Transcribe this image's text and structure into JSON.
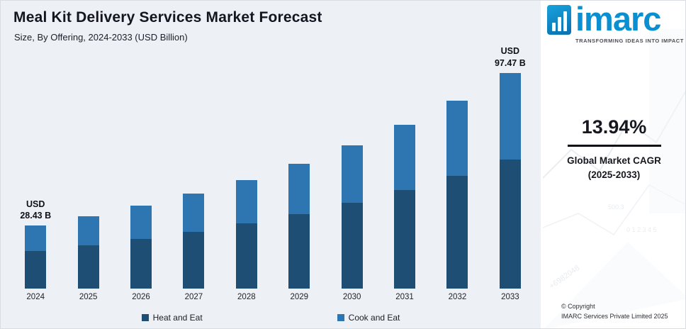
{
  "title": "Meal Kit Delivery Services Market Forecast",
  "subtitle": "Size, By Offering, 2024-2033 (USD Billion)",
  "chart_data": {
    "type": "bar",
    "stacked": true,
    "title": "Meal Kit Delivery Services Market Forecast",
    "subtitle": "Size, By Offering, 2024-2033 (USD Billion)",
    "unit": "USD Billion",
    "categories": [
      "2024",
      "2025",
      "2026",
      "2027",
      "2028",
      "2029",
      "2030",
      "2031",
      "2032",
      "2033"
    ],
    "series": [
      {
        "name": "Heat and Eat",
        "color": "#1e4e74",
        "values": [
          17.06,
          19.56,
          22.43,
          25.72,
          29.49,
          33.82,
          38.77,
          44.46,
          50.98,
          58.48
        ]
      },
      {
        "name": "Cook and Eat",
        "color": "#2e76b2",
        "values": [
          11.37,
          13.04,
          14.95,
          17.14,
          19.66,
          22.54,
          25.85,
          29.64,
          33.99,
          38.99
        ]
      }
    ],
    "totals": [
      28.43,
      32.6,
      37.38,
      42.86,
      49.15,
      56.36,
      64.62,
      74.1,
      84.97,
      97.47
    ],
    "annotations": [
      {
        "category": "2024",
        "lines": [
          "USD",
          "28.43 B"
        ]
      },
      {
        "category": "2033",
        "lines": [
          "USD",
          "97.47 B"
        ]
      }
    ],
    "ylim": [
      0,
      100
    ],
    "grid": false,
    "legend_position": "bottom"
  },
  "sidebar": {
    "logo_text": "imarc",
    "logo_tagline": "TRANSFORMING IDEAS INTO IMPACT",
    "accent_color": "#0a90d0",
    "cagr_value": "13.94%",
    "cagr_label_line1": "Global Market CAGR",
    "cagr_label_line2": "(2025-2033)",
    "copyright_line1": "© Copyright",
    "copyright_line2": "IMARC Services Private Limited 2025",
    "watermark": {
      "value_label": "500.3",
      "axis_numbers": "0  1  2  3  4  5",
      "code": "+6982048"
    }
  }
}
